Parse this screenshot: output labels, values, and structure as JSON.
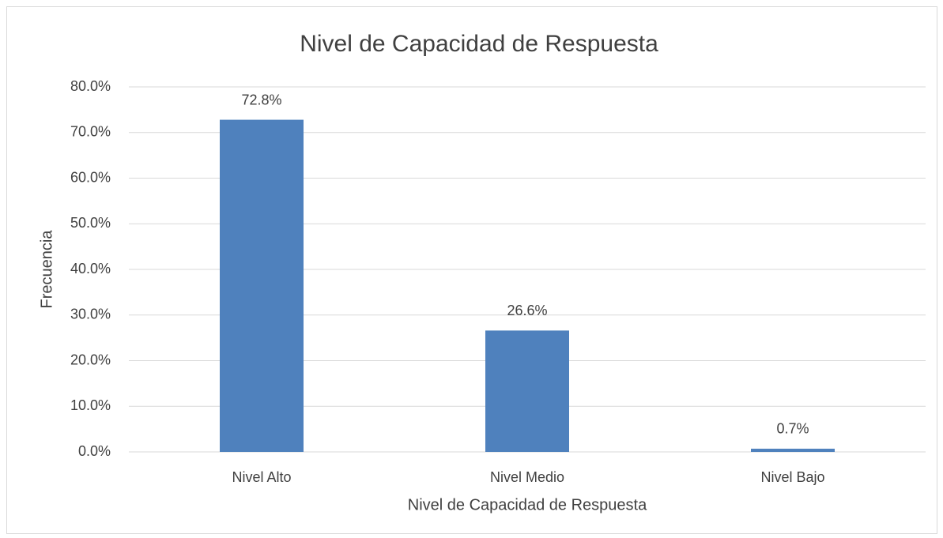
{
  "chart_data": {
    "type": "bar",
    "title": "Nivel de Capacidad de Respuesta",
    "x_label": "Nivel de Capacidad de Respuesta",
    "y_label": "Frecuencia",
    "categories": [
      "Nivel Alto",
      "Nivel Medio",
      "Nivel Bajo"
    ],
    "values": [
      72.8,
      26.6,
      0.7
    ],
    "value_labels": [
      "72.8%",
      "26.6%",
      "0.7%"
    ],
    "color": "#4f81bd",
    "ylim": [
      0,
      80
    ],
    "yticks": [
      {
        "value": 0,
        "label": "0.0%"
      },
      {
        "value": 10,
        "label": "10.0%"
      },
      {
        "value": 20,
        "label": "20.0%"
      },
      {
        "value": 30,
        "label": "30.0%"
      },
      {
        "value": 40,
        "label": "40.0%"
      },
      {
        "value": 50,
        "label": "50.0%"
      },
      {
        "value": 60,
        "label": "60.0%"
      },
      {
        "value": 70,
        "label": "70.0%"
      },
      {
        "value": 80,
        "label": "80.0%"
      }
    ],
    "grid": true
  }
}
